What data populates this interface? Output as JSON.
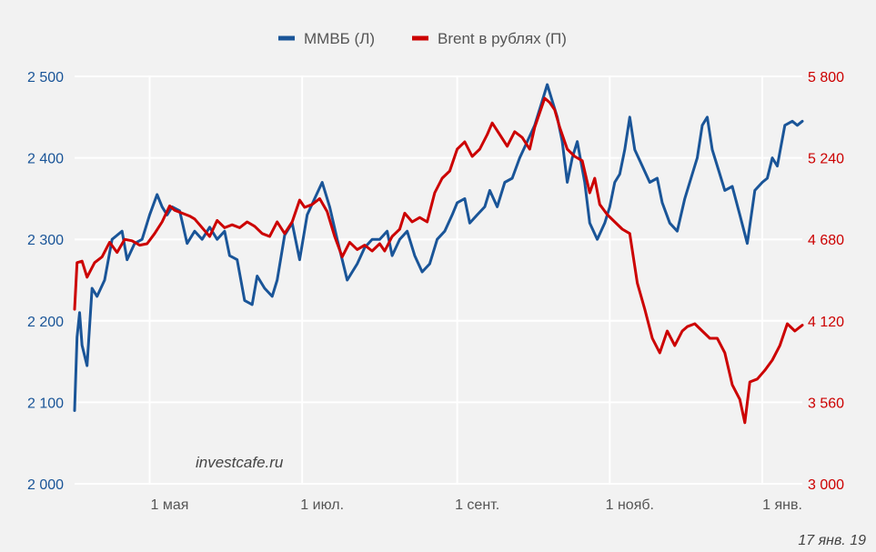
{
  "chart_data": {
    "type": "line",
    "colors": {
      "left": "#1a5598",
      "right": "#cc0000",
      "grid": "#ffffff",
      "background": "#f2f2f2"
    },
    "legend": {
      "position": "top-center"
    },
    "grid": true,
    "watermark": "investcafe.ru",
    "date_stamp": "17 янв. 19",
    "x_range": [
      "2018-04-01",
      "2019-01-17"
    ],
    "x_ticks": [
      {
        "label": "1 мая",
        "date": "2018-05-01"
      },
      {
        "label": "1 июл.",
        "date": "2018-07-01"
      },
      {
        "label": "1 сент.",
        "date": "2018-09-01"
      },
      {
        "label": "1 нояб.",
        "date": "2018-11-01"
      },
      {
        "label": "1 янв.",
        "date": "2019-01-01"
      }
    ],
    "y_left": {
      "min": 2000,
      "max": 2500,
      "ticks": [
        "2 000",
        "2 100",
        "2 200",
        "2 300",
        "2 400",
        "2 500"
      ]
    },
    "y_right": {
      "min": 3000,
      "max": 5800,
      "ticks": [
        "3 000",
        "3 560",
        "4 120",
        "4 680",
        "5 240",
        "5 800"
      ]
    },
    "series": [
      {
        "name": "ММВБ (Л)",
        "axis": "left",
        "points": [
          [
            "2018-04-01",
            2090
          ],
          [
            "2018-04-02",
            2180
          ],
          [
            "2018-04-03",
            2210
          ],
          [
            "2018-04-04",
            2170
          ],
          [
            "2018-04-06",
            2145
          ],
          [
            "2018-04-08",
            2240
          ],
          [
            "2018-04-10",
            2230
          ],
          [
            "2018-04-13",
            2250
          ],
          [
            "2018-04-16",
            2300
          ],
          [
            "2018-04-20",
            2310
          ],
          [
            "2018-04-22",
            2275
          ],
          [
            "2018-04-25",
            2295
          ],
          [
            "2018-04-28",
            2300
          ],
          [
            "2018-05-01",
            2330
          ],
          [
            "2018-05-04",
            2355
          ],
          [
            "2018-05-06",
            2340
          ],
          [
            "2018-05-08",
            2330
          ],
          [
            "2018-05-10",
            2340
          ],
          [
            "2018-05-13",
            2335
          ],
          [
            "2018-05-16",
            2295
          ],
          [
            "2018-05-19",
            2310
          ],
          [
            "2018-05-22",
            2300
          ],
          [
            "2018-05-25",
            2315
          ],
          [
            "2018-05-28",
            2300
          ],
          [
            "2018-05-31",
            2310
          ],
          [
            "2018-06-02",
            2280
          ],
          [
            "2018-06-05",
            2275
          ],
          [
            "2018-06-08",
            2225
          ],
          [
            "2018-06-11",
            2220
          ],
          [
            "2018-06-13",
            2255
          ],
          [
            "2018-06-16",
            2240
          ],
          [
            "2018-06-19",
            2230
          ],
          [
            "2018-06-21",
            2250
          ],
          [
            "2018-06-24",
            2305
          ],
          [
            "2018-06-27",
            2320
          ],
          [
            "2018-06-30",
            2275
          ],
          [
            "2018-07-03",
            2330
          ],
          [
            "2018-07-06",
            2350
          ],
          [
            "2018-07-09",
            2370
          ],
          [
            "2018-07-12",
            2340
          ],
          [
            "2018-07-15",
            2300
          ],
          [
            "2018-07-19",
            2250
          ],
          [
            "2018-07-23",
            2270
          ],
          [
            "2018-07-26",
            2290
          ],
          [
            "2018-07-29",
            2300
          ],
          [
            "2018-08-01",
            2300
          ],
          [
            "2018-08-04",
            2310
          ],
          [
            "2018-08-06",
            2280
          ],
          [
            "2018-08-09",
            2300
          ],
          [
            "2018-08-12",
            2310
          ],
          [
            "2018-08-15",
            2280
          ],
          [
            "2018-08-18",
            2260
          ],
          [
            "2018-08-21",
            2270
          ],
          [
            "2018-08-24",
            2300
          ],
          [
            "2018-08-27",
            2310
          ],
          [
            "2018-08-30",
            2330
          ],
          [
            "2018-09-01",
            2345
          ],
          [
            "2018-09-04",
            2350
          ],
          [
            "2018-09-06",
            2320
          ],
          [
            "2018-09-09",
            2330
          ],
          [
            "2018-09-12",
            2340
          ],
          [
            "2018-09-14",
            2360
          ],
          [
            "2018-09-17",
            2340
          ],
          [
            "2018-09-20",
            2370
          ],
          [
            "2018-09-23",
            2375
          ],
          [
            "2018-09-26",
            2400
          ],
          [
            "2018-09-29",
            2420
          ],
          [
            "2018-10-02",
            2440
          ],
          [
            "2018-10-05",
            2470
          ],
          [
            "2018-10-07",
            2490
          ],
          [
            "2018-10-09",
            2470
          ],
          [
            "2018-10-11",
            2450
          ],
          [
            "2018-10-13",
            2420
          ],
          [
            "2018-10-15",
            2370
          ],
          [
            "2018-10-17",
            2400
          ],
          [
            "2018-10-19",
            2420
          ],
          [
            "2018-10-22",
            2370
          ],
          [
            "2018-10-24",
            2320
          ],
          [
            "2018-10-27",
            2300
          ],
          [
            "2018-10-30",
            2320
          ],
          [
            "2018-11-01",
            2340
          ],
          [
            "2018-11-03",
            2370
          ],
          [
            "2018-11-05",
            2380
          ],
          [
            "2018-11-07",
            2410
          ],
          [
            "2018-11-09",
            2450
          ],
          [
            "2018-11-11",
            2410
          ],
          [
            "2018-11-14",
            2390
          ],
          [
            "2018-11-17",
            2370
          ],
          [
            "2018-11-20",
            2375
          ],
          [
            "2018-11-22",
            2345
          ],
          [
            "2018-11-25",
            2320
          ],
          [
            "2018-11-28",
            2310
          ],
          [
            "2018-12-01",
            2350
          ],
          [
            "2018-12-04",
            2380
          ],
          [
            "2018-12-06",
            2400
          ],
          [
            "2018-12-08",
            2440
          ],
          [
            "2018-12-10",
            2450
          ],
          [
            "2018-12-12",
            2410
          ],
          [
            "2018-12-15",
            2380
          ],
          [
            "2018-12-17",
            2360
          ],
          [
            "2018-12-20",
            2365
          ],
          [
            "2018-12-23",
            2330
          ],
          [
            "2018-12-26",
            2295
          ],
          [
            "2018-12-29",
            2360
          ],
          [
            "2019-01-01",
            2370
          ],
          [
            "2019-01-03",
            2375
          ],
          [
            "2019-01-05",
            2400
          ],
          [
            "2019-01-07",
            2390
          ],
          [
            "2019-01-10",
            2440
          ],
          [
            "2019-01-13",
            2445
          ],
          [
            "2019-01-15",
            2440
          ],
          [
            "2019-01-17",
            2445
          ]
        ]
      },
      {
        "name": "Brent в рублях (П)",
        "axis": "right",
        "points": [
          [
            "2018-04-01",
            4200
          ],
          [
            "2018-04-02",
            4520
          ],
          [
            "2018-04-04",
            4530
          ],
          [
            "2018-04-06",
            4420
          ],
          [
            "2018-04-09",
            4520
          ],
          [
            "2018-04-12",
            4560
          ],
          [
            "2018-04-15",
            4660
          ],
          [
            "2018-04-18",
            4590
          ],
          [
            "2018-04-21",
            4680
          ],
          [
            "2018-04-24",
            4670
          ],
          [
            "2018-04-27",
            4640
          ],
          [
            "2018-04-30",
            4650
          ],
          [
            "2018-05-03",
            4720
          ],
          [
            "2018-05-06",
            4800
          ],
          [
            "2018-05-09",
            4910
          ],
          [
            "2018-05-11",
            4880
          ],
          [
            "2018-05-14",
            4860
          ],
          [
            "2018-05-17",
            4840
          ],
          [
            "2018-05-19",
            4820
          ],
          [
            "2018-05-22",
            4760
          ],
          [
            "2018-05-25",
            4700
          ],
          [
            "2018-05-28",
            4810
          ],
          [
            "2018-05-31",
            4760
          ],
          [
            "2018-06-03",
            4780
          ],
          [
            "2018-06-06",
            4760
          ],
          [
            "2018-06-09",
            4800
          ],
          [
            "2018-06-12",
            4770
          ],
          [
            "2018-06-15",
            4720
          ],
          [
            "2018-06-18",
            4700
          ],
          [
            "2018-06-21",
            4800
          ],
          [
            "2018-06-24",
            4720
          ],
          [
            "2018-06-27",
            4800
          ],
          [
            "2018-06-30",
            4950
          ],
          [
            "2018-07-02",
            4900
          ],
          [
            "2018-07-05",
            4920
          ],
          [
            "2018-07-08",
            4960
          ],
          [
            "2018-07-11",
            4870
          ],
          [
            "2018-07-14",
            4700
          ],
          [
            "2018-07-17",
            4560
          ],
          [
            "2018-07-20",
            4660
          ],
          [
            "2018-07-23",
            4610
          ],
          [
            "2018-07-26",
            4640
          ],
          [
            "2018-07-29",
            4600
          ],
          [
            "2018-08-01",
            4650
          ],
          [
            "2018-08-03",
            4600
          ],
          [
            "2018-08-06",
            4700
          ],
          [
            "2018-08-09",
            4750
          ],
          [
            "2018-08-11",
            4860
          ],
          [
            "2018-08-14",
            4800
          ],
          [
            "2018-08-17",
            4830
          ],
          [
            "2018-08-20",
            4800
          ],
          [
            "2018-08-23",
            5000
          ],
          [
            "2018-08-26",
            5100
          ],
          [
            "2018-08-29",
            5150
          ],
          [
            "2018-09-01",
            5300
          ],
          [
            "2018-09-04",
            5350
          ],
          [
            "2018-09-07",
            5250
          ],
          [
            "2018-09-10",
            5300
          ],
          [
            "2018-09-13",
            5400
          ],
          [
            "2018-09-15",
            5480
          ],
          [
            "2018-09-18",
            5400
          ],
          [
            "2018-09-21",
            5320
          ],
          [
            "2018-09-24",
            5420
          ],
          [
            "2018-09-27",
            5380
          ],
          [
            "2018-09-30",
            5300
          ],
          [
            "2018-10-02",
            5450
          ],
          [
            "2018-10-04",
            5550
          ],
          [
            "2018-10-06",
            5650
          ],
          [
            "2018-10-08",
            5620
          ],
          [
            "2018-10-10",
            5570
          ],
          [
            "2018-10-12",
            5450
          ],
          [
            "2018-10-15",
            5300
          ],
          [
            "2018-10-18",
            5250
          ],
          [
            "2018-10-21",
            5220
          ],
          [
            "2018-10-24",
            5000
          ],
          [
            "2018-10-26",
            5100
          ],
          [
            "2018-10-28",
            4920
          ],
          [
            "2018-10-31",
            4850
          ],
          [
            "2018-11-03",
            4800
          ],
          [
            "2018-11-06",
            4750
          ],
          [
            "2018-11-09",
            4720
          ],
          [
            "2018-11-12",
            4380
          ],
          [
            "2018-11-15",
            4200
          ],
          [
            "2018-11-18",
            4000
          ],
          [
            "2018-11-21",
            3900
          ],
          [
            "2018-11-24",
            4050
          ],
          [
            "2018-11-27",
            3950
          ],
          [
            "2018-11-30",
            4050
          ],
          [
            "2018-12-02",
            4080
          ],
          [
            "2018-12-05",
            4100
          ],
          [
            "2018-12-08",
            4050
          ],
          [
            "2018-12-11",
            4000
          ],
          [
            "2018-12-14",
            4000
          ],
          [
            "2018-12-17",
            3900
          ],
          [
            "2018-12-20",
            3680
          ],
          [
            "2018-12-23",
            3580
          ],
          [
            "2018-12-25",
            3420
          ],
          [
            "2018-12-27",
            3700
          ],
          [
            "2018-12-30",
            3720
          ],
          [
            "2019-01-02",
            3780
          ],
          [
            "2019-01-05",
            3850
          ],
          [
            "2019-01-08",
            3950
          ],
          [
            "2019-01-11",
            4100
          ],
          [
            "2019-01-14",
            4050
          ],
          [
            "2019-01-17",
            4090
          ]
        ]
      }
    ]
  }
}
